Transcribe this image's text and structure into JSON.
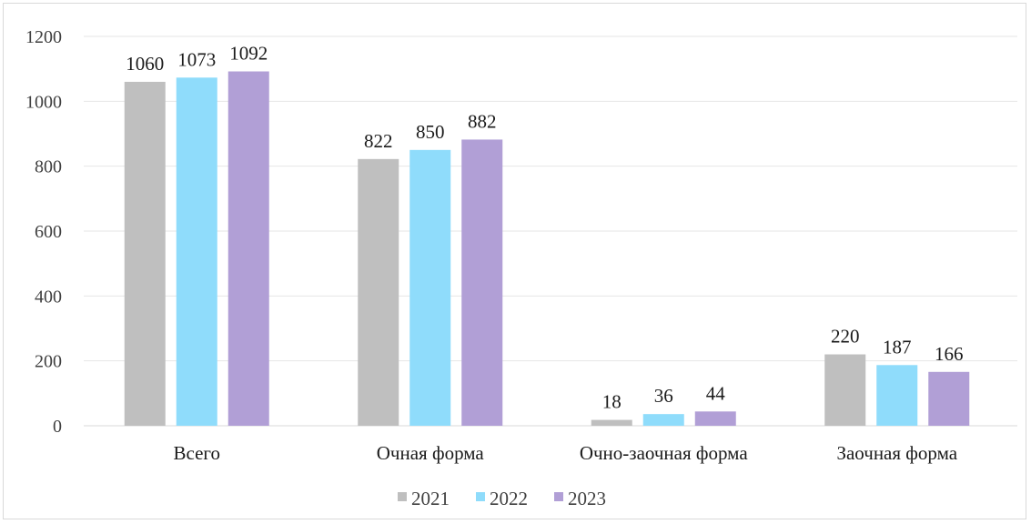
{
  "chart_data": {
    "type": "bar",
    "title": "",
    "xlabel": "",
    "ylabel": "",
    "ylim": [
      0,
      1200
    ],
    "yticks": [
      0,
      200,
      400,
      600,
      800,
      1000,
      1200
    ],
    "grid": true,
    "legend_position": "bottom",
    "categories": [
      "Всего",
      "Очная форма",
      "Очно-заочная форма",
      "Заочная форма"
    ],
    "series": [
      {
        "name": "2021",
        "color": "#bfbfbf",
        "values": [
          1060,
          822,
          18,
          220
        ]
      },
      {
        "name": "2022",
        "color": "#8fdcfb",
        "values": [
          1073,
          850,
          36,
          187
        ]
      },
      {
        "name": "2023",
        "color": "#b19fd6",
        "values": [
          1092,
          882,
          44,
          166
        ]
      }
    ]
  }
}
